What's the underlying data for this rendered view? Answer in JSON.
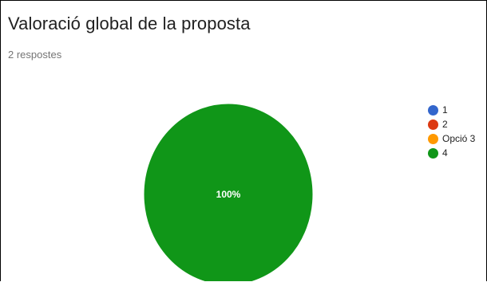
{
  "header": {
    "title": "Valoració global de la proposta",
    "responses": "2 respostes"
  },
  "chart_data": {
    "type": "pie",
    "title": "Valoració global de la proposta",
    "categories": [
      "1",
      "2",
      "Opció 3",
      "4"
    ],
    "values": [
      0,
      0,
      0,
      2
    ],
    "colors": [
      "#3366cc",
      "#dc3912",
      "#ff9900",
      "#109618"
    ],
    "slice_labels": [
      "",
      "",
      "",
      "100%"
    ],
    "legend_position": "right"
  }
}
